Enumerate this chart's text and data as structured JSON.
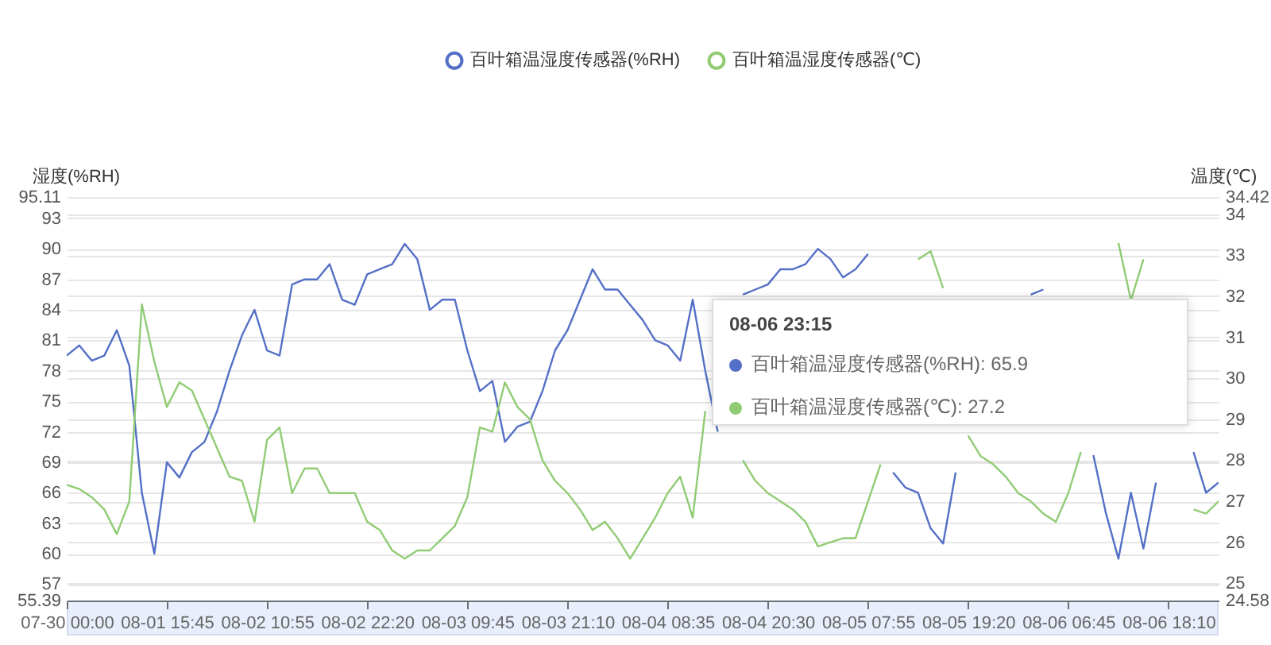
{
  "chart_data": {
    "type": "line",
    "categories": [
      "07-30 00:00",
      null,
      null,
      null,
      null,
      null,
      null,
      null,
      "08-01 15:45",
      null,
      null,
      null,
      null,
      null,
      null,
      null,
      "08-02 10:55",
      null,
      null,
      null,
      null,
      null,
      null,
      null,
      "08-02 22:20",
      null,
      null,
      null,
      null,
      null,
      null,
      null,
      "08-03 09:45",
      null,
      null,
      null,
      null,
      null,
      null,
      null,
      "08-03 21:10",
      null,
      null,
      null,
      null,
      null,
      null,
      null,
      "08-04 08:35",
      null,
      null,
      null,
      null,
      null,
      null,
      null,
      "08-04 20:30",
      null,
      null,
      null,
      null,
      null,
      null,
      null,
      "08-05 07:55",
      null,
      null,
      null,
      null,
      null,
      null,
      null,
      "08-05 19:20",
      null,
      null,
      null,
      null,
      null,
      null,
      null,
      "08-06 06:45",
      null,
      null,
      null,
      null,
      null,
      null,
      null,
      "08-06 18:10",
      null,
      null,
      null,
      null
    ],
    "series": [
      {
        "name": "百叶箱温湿度传感器(%RH)",
        "color": "#5470c6",
        "values": [
          79.5,
          80.5,
          79,
          79.5,
          82,
          78.5,
          66,
          60,
          69,
          67.5,
          70,
          71,
          74,
          78,
          81.5,
          84,
          80,
          79.5,
          86.5,
          87,
          87,
          88.5,
          85,
          84.5,
          87.5,
          88,
          88.5,
          90.5,
          89,
          84,
          85,
          85,
          80,
          76,
          77,
          71,
          72.5,
          73,
          76,
          80,
          82,
          85,
          88,
          86,
          86,
          84.5,
          83,
          81,
          80.5,
          79,
          85,
          78,
          72,
          null,
          85.5,
          86,
          86.5,
          88,
          88,
          88.5,
          90,
          89,
          87.2,
          88,
          89.5,
          null,
          68,
          66.5,
          66,
          62.5,
          61,
          68,
          null,
          null,
          null,
          null,
          null,
          85.5,
          86,
          null,
          null,
          null,
          69.7,
          64,
          59.5,
          66,
          60.5,
          67,
          null,
          null,
          70,
          66,
          67
        ]
      },
      {
        "name": "百叶箱温湿度传感器(℃)",
        "color": "#91cc75",
        "axis": "y2",
        "values": [
          27.4,
          27.3,
          27.1,
          26.8,
          26.2,
          27.0,
          31.8,
          30.4,
          29.3,
          29.9,
          29.7,
          29.0,
          28.3,
          27.6,
          27.5,
          26.5,
          28.5,
          28.8,
          27.2,
          27.8,
          27.8,
          27.2,
          27.2,
          27.2,
          26.5,
          26.3,
          25.8,
          25.6,
          25.8,
          25.8,
          26.1,
          26.4,
          27.1,
          28.8,
          28.7,
          29.9,
          29.3,
          29.0,
          28.0,
          27.5,
          27.2,
          26.8,
          26.3,
          26.5,
          26.1,
          25.6,
          26.1,
          26.6,
          27.2,
          27.6,
          26.6,
          29.2,
          null,
          null,
          28.0,
          27.5,
          27.2,
          27.0,
          26.8,
          26.5,
          25.9,
          26.0,
          26.1,
          26.1,
          27.0,
          27.9,
          null,
          null,
          32.9,
          33.1,
          32.2,
          null,
          28.6,
          28.1,
          27.9,
          27.6,
          27.2,
          27.0,
          26.7,
          26.5,
          27.2,
          28.2,
          null,
          null,
          33.3,
          31.9,
          32.9,
          null,
          null,
          null,
          26.8,
          26.7,
          27.0
        ]
      }
    ],
    "ylabel": "湿度(%RH)",
    "y2label": "温度(℃)",
    "ylim": [
      55.39,
      95.11
    ],
    "yticks": [
      55.39,
      57,
      60,
      63,
      66,
      69,
      72,
      75,
      78,
      81,
      84,
      87,
      90,
      93,
      95.11
    ],
    "y2lim": [
      24.58,
      34.42
    ],
    "y2ticks": [
      24.58,
      25,
      26,
      27,
      28,
      29,
      30,
      31,
      32,
      33,
      34,
      34.42
    ],
    "grid": true,
    "legend": "top",
    "annotations": [
      "08-06 23:15",
      "百叶箱温湿度传感器(%RH): 65.9",
      "百叶箱温湿度传感器(℃): 27.2"
    ]
  }
}
